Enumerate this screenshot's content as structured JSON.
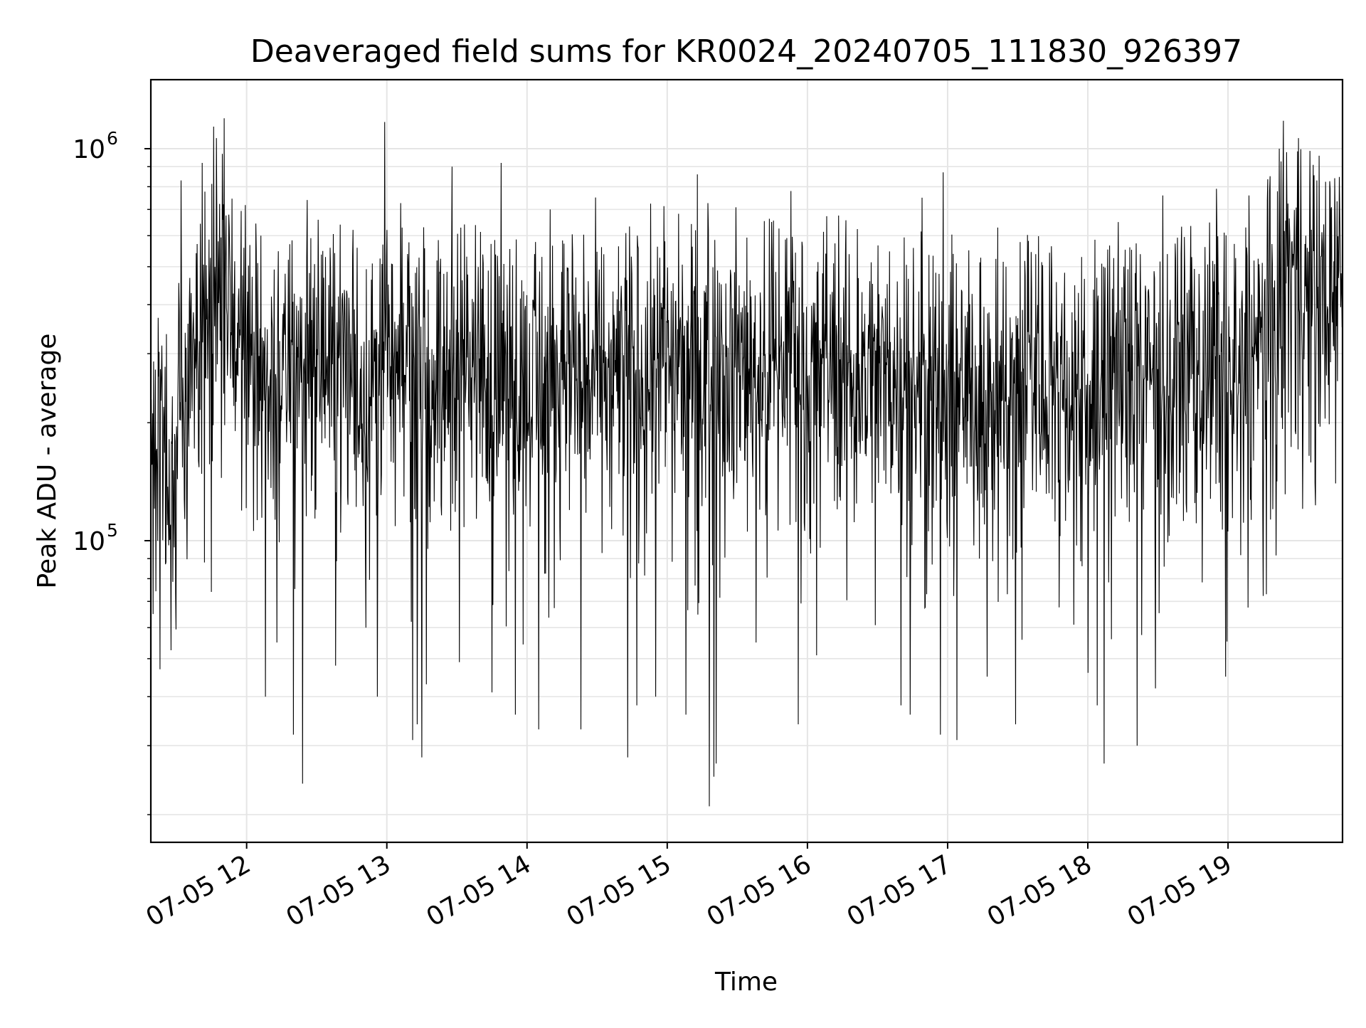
{
  "chart_data": {
    "type": "line",
    "title": "Deaveraged field sums for KR0024_20240705_111830_926397",
    "xlabel": "Time",
    "ylabel": "Peak ADU - average",
    "y_scale": "log",
    "ylim": [
      17000,
      1500000
    ],
    "xlim": [
      "2024-07-05 11:19",
      "2024-07-05 19:49"
    ],
    "grid": true,
    "line_color": "#000000",
    "x_ticks": [
      {
        "t": "2024-07-05 12:00",
        "label": "07-05 12"
      },
      {
        "t": "2024-07-05 13:00",
        "label": "07-05 13"
      },
      {
        "t": "2024-07-05 14:00",
        "label": "07-05 14"
      },
      {
        "t": "2024-07-05 15:00",
        "label": "07-05 15"
      },
      {
        "t": "2024-07-05 16:00",
        "label": "07-05 16"
      },
      {
        "t": "2024-07-05 17:00",
        "label": "07-05 17"
      },
      {
        "t": "2024-07-05 18:00",
        "label": "07-05 18"
      },
      {
        "t": "2024-07-05 19:00",
        "label": "07-05 19"
      }
    ],
    "y_ticks": [
      {
        "value": 100000,
        "base": "10",
        "exp": "5"
      },
      {
        "value": 1000000,
        "base": "10",
        "exp": "6"
      }
    ],
    "series": [
      {
        "values_time_y": [
          [
            "2024-07-05 11:19",
            170000
          ],
          [
            "2024-07-05 11:23",
            240000
          ],
          [
            "2024-07-05 11:27",
            120000
          ],
          [
            "2024-07-05 11:31",
            200000
          ],
          [
            "2024-07-05 11:35",
            250000
          ],
          [
            "2024-07-05 11:40",
            300000
          ],
          [
            "2024-07-05 11:45",
            450000
          ],
          [
            "2024-07-05 11:50",
            520000
          ],
          [
            "2024-07-05 11:55",
            350000
          ],
          [
            "2024-07-05 12:00",
            280000
          ],
          [
            "2024-07-05 12:10",
            240000
          ],
          [
            "2024-07-05 12:20",
            260000
          ],
          [
            "2024-07-05 12:30",
            270000
          ],
          [
            "2024-07-05 12:40",
            280000
          ],
          [
            "2024-07-05 12:50",
            260000
          ],
          [
            "2024-07-05 13:00",
            250000
          ],
          [
            "2024-07-05 13:15",
            270000
          ],
          [
            "2024-07-05 13:30",
            280000
          ],
          [
            "2024-07-05 13:45",
            250000
          ],
          [
            "2024-07-05 14:00",
            240000
          ],
          [
            "2024-07-05 14:15",
            250000
          ],
          [
            "2024-07-05 14:30",
            260000
          ],
          [
            "2024-07-05 14:45",
            270000
          ],
          [
            "2024-07-05 15:00",
            300000
          ],
          [
            "2024-07-05 15:15",
            290000
          ],
          [
            "2024-07-05 15:30",
            280000
          ],
          [
            "2024-07-05 15:45",
            270000
          ],
          [
            "2024-07-05 16:00",
            280000
          ],
          [
            "2024-07-05 16:15",
            270000
          ],
          [
            "2024-07-05 16:30",
            260000
          ],
          [
            "2024-07-05 16:45",
            250000
          ],
          [
            "2024-07-05 17:00",
            240000
          ],
          [
            "2024-07-05 17:15",
            230000
          ],
          [
            "2024-07-05 17:30",
            240000
          ],
          [
            "2024-07-05 17:45",
            250000
          ],
          [
            "2024-07-05 18:00",
            240000
          ],
          [
            "2024-07-05 18:15",
            250000
          ],
          [
            "2024-07-05 18:30",
            260000
          ],
          [
            "2024-07-05 18:45",
            270000
          ],
          [
            "2024-07-05 19:00",
            250000
          ],
          [
            "2024-07-05 19:10",
            260000
          ],
          [
            "2024-07-05 19:20",
            380000
          ],
          [
            "2024-07-05 19:25",
            500000
          ],
          [
            "2024-07-05 19:30",
            450000
          ],
          [
            "2024-07-05 19:40",
            420000
          ],
          [
            "2024-07-05 19:49",
            450000
          ]
        ]
      }
    ],
    "spikes": [
      [
        "2024-07-05 11:20",
        65000
      ],
      [
        "2024-07-05 11:23",
        47000
      ],
      [
        "2024-07-05 11:32",
        830000
      ],
      [
        "2024-07-05 11:41",
        920000
      ],
      [
        "2024-07-05 11:42",
        88000
      ],
      [
        "2024-07-05 11:45",
        74000
      ],
      [
        "2024-07-05 12:06",
        600000
      ],
      [
        "2024-07-05 12:08",
        40000
      ],
      [
        "2024-07-05 12:13",
        55000
      ],
      [
        "2024-07-05 12:20",
        32000
      ],
      [
        "2024-07-05 12:24",
        24000
      ],
      [
        "2024-07-05 12:26",
        740000
      ],
      [
        "2024-07-05 12:38",
        48000
      ],
      [
        "2024-07-05 12:40",
        640000
      ],
      [
        "2024-07-05 12:51",
        60000
      ],
      [
        "2024-07-05 12:56",
        40000
      ],
      [
        "2024-07-05 12:59",
        1170000
      ],
      [
        "2024-07-05 13:11",
        31000
      ],
      [
        "2024-07-05 13:13",
        34000
      ],
      [
        "2024-07-05 13:15",
        28000
      ],
      [
        "2024-07-05 13:17",
        43000
      ],
      [
        "2024-07-05 13:28",
        900000
      ],
      [
        "2024-07-05 13:31",
        49000
      ],
      [
        "2024-07-05 13:45",
        41000
      ],
      [
        "2024-07-05 13:49",
        920000
      ],
      [
        "2024-07-05 13:55",
        36000
      ],
      [
        "2024-07-05 14:05",
        33000
      ],
      [
        "2024-07-05 14:10",
        700000
      ],
      [
        "2024-07-05 14:23",
        33000
      ],
      [
        "2024-07-05 14:43",
        28000
      ],
      [
        "2024-07-05 14:47",
        38000
      ],
      [
        "2024-07-05 14:55",
        40000
      ],
      [
        "2024-07-05 15:08",
        36000
      ],
      [
        "2024-07-05 15:13",
        860000
      ],
      [
        "2024-07-05 15:18",
        21000
      ],
      [
        "2024-07-05 15:20",
        25000
      ],
      [
        "2024-07-05 15:21",
        27000
      ],
      [
        "2024-07-05 15:38",
        55000
      ],
      [
        "2024-07-05 15:53",
        780000
      ],
      [
        "2024-07-05 15:56",
        34000
      ],
      [
        "2024-07-05 16:04",
        51000
      ],
      [
        "2024-07-05 16:40",
        38000
      ],
      [
        "2024-07-05 16:44",
        36000
      ],
      [
        "2024-07-05 16:49",
        750000
      ],
      [
        "2024-07-05 16:57",
        32000
      ],
      [
        "2024-07-05 16:58",
        870000
      ],
      [
        "2024-07-05 17:04",
        31000
      ],
      [
        "2024-07-05 17:17",
        45000
      ],
      [
        "2024-07-05 17:25",
        500000
      ],
      [
        "2024-07-05 17:29",
        34000
      ],
      [
        "2024-07-05 17:36",
        440000
      ],
      [
        "2024-07-05 18:00",
        46000
      ],
      [
        "2024-07-05 18:04",
        38000
      ],
      [
        "2024-07-05 18:07",
        27000
      ],
      [
        "2024-07-05 18:13",
        650000
      ],
      [
        "2024-07-05 18:21",
        30000
      ],
      [
        "2024-07-05 18:29",
        42000
      ],
      [
        "2024-07-05 18:32",
        760000
      ],
      [
        "2024-07-05 18:40",
        540000
      ],
      [
        "2024-07-05 18:55",
        790000
      ],
      [
        "2024-07-05 18:59",
        45000
      ],
      [
        "2024-07-05 19:09",
        760000
      ],
      [
        "2024-07-05 19:22",
        1000000
      ],
      [
        "2024-07-05 19:25",
        980000
      ],
      [
        "2024-07-05 19:38",
        830000
      ],
      [
        "2024-07-05 19:46",
        140000
      ]
    ]
  }
}
